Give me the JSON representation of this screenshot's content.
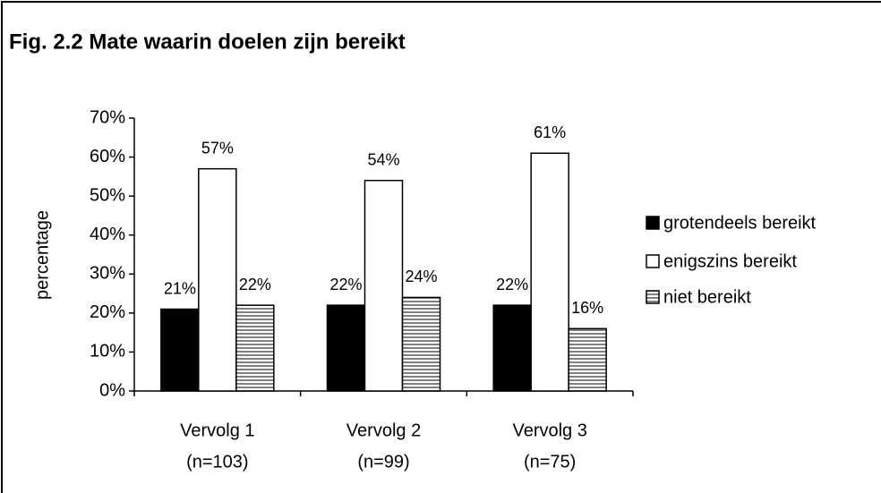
{
  "chart_data": {
    "type": "bar",
    "title": "Fig. 2.2 Mate waarin doelen zijn bereikt",
    "y_label": "percentage",
    "categories": [
      [
        "Vervolg 1",
        "(n=103)"
      ],
      [
        "Vervolg 2",
        "(n=99)"
      ],
      [
        "Vervolg 3",
        "(n=75)"
      ]
    ],
    "series": [
      {
        "name": "grotendeels bereikt",
        "color": "#000000",
        "values": [
          21,
          22,
          22
        ],
        "value_labels": [
          "21%",
          "22%",
          "22%"
        ]
      },
      {
        "name": "enigszins bereikt",
        "color": "#ffffff",
        "values": [
          57,
          54,
          61
        ],
        "value_labels": [
          "57%",
          "54%",
          "61%"
        ]
      },
      {
        "name": "niet bereikt",
        "color": "#bdbdbd",
        "pattern": "horizontal-lines",
        "values": [
          22,
          24,
          16
        ],
        "value_labels": [
          "22%",
          "24%",
          "16%"
        ]
      }
    ],
    "ylim": [
      0,
      70
    ],
    "yticks": [
      {
        "value": 0,
        "label": "0%"
      },
      {
        "value": 10,
        "label": "10%"
      },
      {
        "value": 20,
        "label": "20%"
      },
      {
        "value": 30,
        "label": "30%"
      },
      {
        "value": 40,
        "label": "40%"
      },
      {
        "value": 50,
        "label": "50%"
      },
      {
        "value": 60,
        "label": "60%"
      },
      {
        "value": 70,
        "label": "70%"
      }
    ],
    "grid": false,
    "legend": "right"
  }
}
